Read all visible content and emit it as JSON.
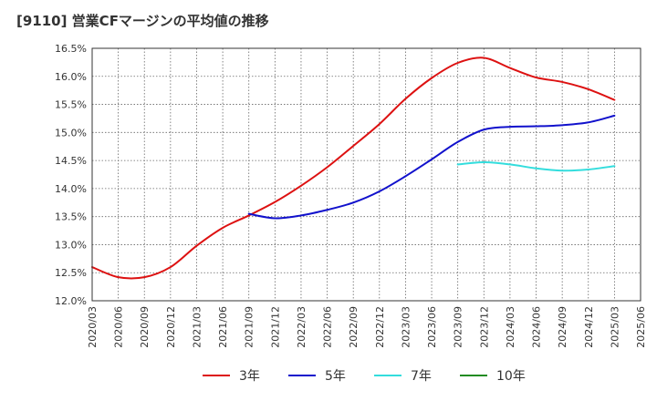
{
  "chart_data": {
    "type": "line",
    "title": "[9110]  営業CFマージンの平均値の推移",
    "xlabel": "",
    "ylabel": "",
    "x_ticks": [
      "2020/03",
      "2020/06",
      "2020/09",
      "2020/12",
      "2021/03",
      "2021/06",
      "2021/09",
      "2021/12",
      "2022/03",
      "2022/06",
      "2022/09",
      "2022/12",
      "2023/03",
      "2023/06",
      "2023/09",
      "2023/12",
      "2024/03",
      "2024/06",
      "2024/09",
      "2024/12",
      "2025/03",
      "2025/06"
    ],
    "y_ticks": [
      "12.0%",
      "12.5%",
      "13.0%",
      "13.5%",
      "14.0%",
      "14.5%",
      "15.0%",
      "15.5%",
      "16.0%",
      "16.5%"
    ],
    "ylim": [
      12.0,
      16.5
    ],
    "grid": true,
    "legend_position": "bottom",
    "series": [
      {
        "name": "3年",
        "color": "#dd1111",
        "x": [
          "2020/03",
          "2020/06",
          "2020/09",
          "2020/12",
          "2021/03",
          "2021/06",
          "2021/09",
          "2021/12",
          "2022/03",
          "2022/06",
          "2022/09",
          "2022/12",
          "2023/03",
          "2023/06",
          "2023/09",
          "2023/12",
          "2024/03",
          "2024/06",
          "2024/09",
          "2024/12",
          "2025/03"
        ],
        "values": [
          12.6,
          12.42,
          12.42,
          12.6,
          12.98,
          13.3,
          13.52,
          13.76,
          14.05,
          14.38,
          14.76,
          15.15,
          15.6,
          15.97,
          16.24,
          16.33,
          16.15,
          15.98,
          15.9,
          15.77,
          15.58
        ]
      },
      {
        "name": "5年",
        "color": "#1111cc",
        "x": [
          "2021/09",
          "2021/12",
          "2022/03",
          "2022/06",
          "2022/09",
          "2022/12",
          "2023/03",
          "2023/06",
          "2023/09",
          "2023/12",
          "2024/03",
          "2024/06",
          "2024/09",
          "2024/12",
          "2025/03"
        ],
        "values": [
          13.55,
          13.47,
          13.52,
          13.62,
          13.75,
          13.95,
          14.22,
          14.52,
          14.83,
          15.05,
          15.1,
          15.11,
          15.13,
          15.18,
          15.3
        ]
      },
      {
        "name": "7年",
        "color": "#33dddd",
        "x": [
          "2023/09",
          "2023/12",
          "2024/03",
          "2024/06",
          "2024/09",
          "2024/12",
          "2025/03"
        ],
        "values": [
          14.43,
          14.47,
          14.43,
          14.36,
          14.32,
          14.34,
          14.4
        ]
      },
      {
        "name": "10年",
        "color": "#228b22",
        "x": [],
        "values": []
      }
    ]
  }
}
